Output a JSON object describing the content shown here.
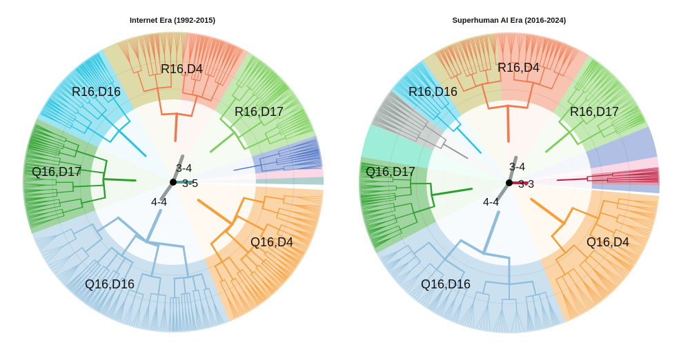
{
  "panels": [
    {
      "title": "Internet Era (1992-2015)",
      "root_labels": [
        "3-4",
        "3-5",
        "4-4"
      ],
      "sectors": [
        {
          "label": "R16,D4",
          "color": "#ef7a4f"
        },
        {
          "label": "R16,D16",
          "color": "#27c4e1"
        },
        {
          "label": "R16,D17",
          "color": "#7ccf5a"
        },
        {
          "label": "Q16,D17",
          "color": "#2ca02c"
        },
        {
          "label": "Q16,D4",
          "color": "#f6a03c"
        },
        {
          "label": "Q16,D16",
          "color": "#8fbddb"
        }
      ]
    },
    {
      "title": "Superhuman AI Era (2016-2024)",
      "root_labels": [
        "3-4",
        "3-3",
        "4-4"
      ],
      "sectors": [
        {
          "label": "R16,D4",
          "color": "#ef7a4f"
        },
        {
          "label": "R16,D16",
          "color": "#27c4e1"
        },
        {
          "label": "R16,D17",
          "color": "#7ccf5a"
        },
        {
          "label": "Q16,D17",
          "color": "#2ca02c"
        },
        {
          "label": "Q16,D4",
          "color": "#f6a03c"
        },
        {
          "label": "Q16,D16",
          "color": "#8fbddb"
        }
      ]
    }
  ],
  "colors": {
    "olive": "#b5b040",
    "mauve": "#b889a8",
    "blue": "#4f74c4",
    "pink": "#f5a9c7",
    "crimson": "#c01f45",
    "teal": "#4e9a93",
    "gray": "#8f9c97",
    "mint": "#28d7a8",
    "dark": "#555555"
  }
}
